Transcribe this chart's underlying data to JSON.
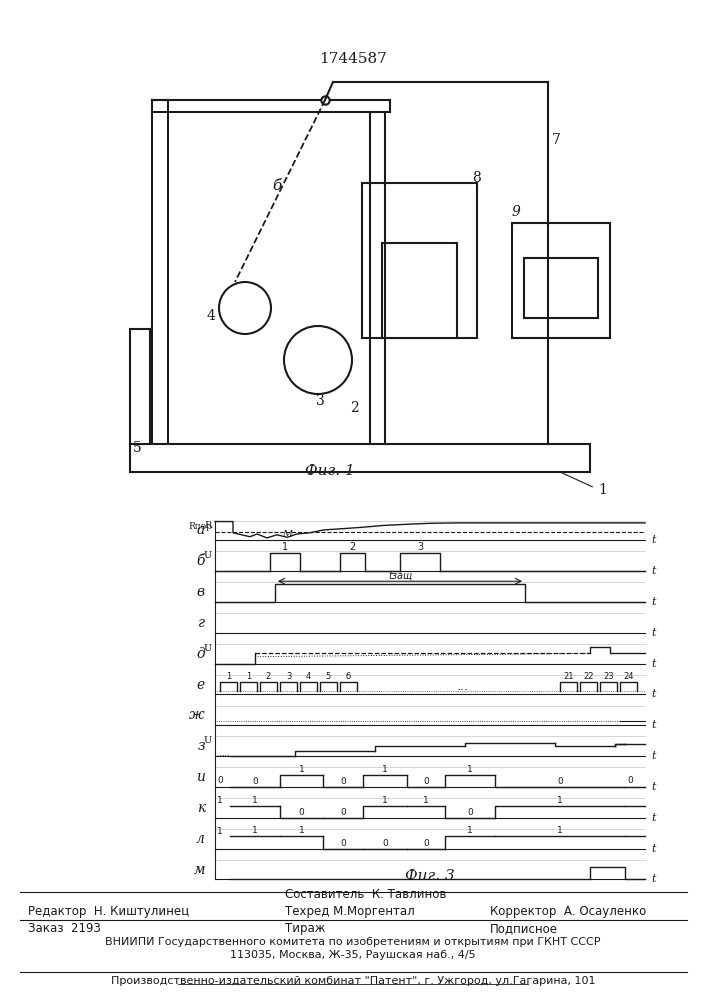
{
  "patent_number": "1744587",
  "fig1_label": "Фиг. 1",
  "fig3_label": "Фиг. 3",
  "editor_line": "Редактор  Н. Киштулинец",
  "composer_line": "Составитель  К. Тавлинов",
  "techred_line": "Техред М.Моргентал",
  "corrector_line": "Корректор  А. Осауленко",
  "order_line": "Заказ  2193",
  "tirazh_line": "Тираж",
  "podpisnoe_line": "Подписное",
  "vniipи_line": "ВНИИПИ Государственного комитета по изобретениям и открытиям при ГКНТ СССР",
  "address_line": "113035, Москва, Ж-35, Раушская наб., 4/5",
  "factory_line": "Производственно-издательский комбинат \"Патент\", г. Ужгород, ул.Гагарина, 101",
  "line_color": "#1a1a1a"
}
